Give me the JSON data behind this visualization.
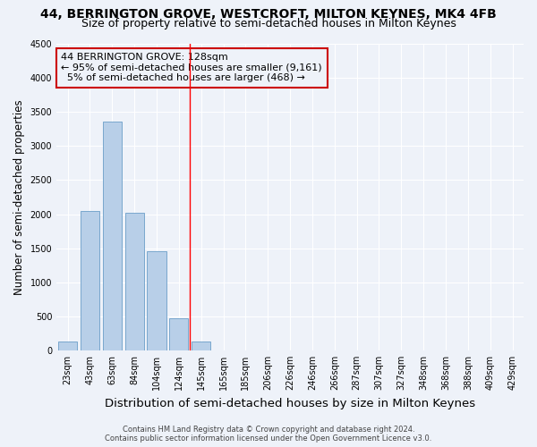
{
  "title": "44, BERRINGTON GROVE, WESTCROFT, MILTON KEYNES, MK4 4FB",
  "subtitle": "Size of property relative to semi-detached houses in Milton Keynes",
  "xlabel": "Distribution of semi-detached houses by size in Milton Keynes",
  "ylabel": "Number of semi-detached properties",
  "categories": [
    "23sqm",
    "43sqm",
    "63sqm",
    "84sqm",
    "104sqm",
    "124sqm",
    "145sqm",
    "165sqm",
    "185sqm",
    "206sqm",
    "226sqm",
    "246sqm",
    "266sqm",
    "287sqm",
    "307sqm",
    "327sqm",
    "348sqm",
    "368sqm",
    "388sqm",
    "409sqm",
    "429sqm"
  ],
  "values": [
    130,
    2040,
    3360,
    2020,
    1450,
    470,
    130,
    0,
    0,
    0,
    0,
    0,
    0,
    0,
    0,
    0,
    0,
    0,
    0,
    0,
    0
  ],
  "bar_color": "#b8cfe8",
  "bar_edge_color": "#6a9ec8",
  "property_label": "44 BERRINGTON GROVE: 128sqm",
  "pct_smaller": 95,
  "n_smaller": 9161,
  "pct_larger": 5,
  "n_larger": 468,
  "vline_index": 5.5,
  "annotation_box_color": "#cc0000",
  "ylim": [
    0,
    4500
  ],
  "yticks": [
    0,
    500,
    1000,
    1500,
    2000,
    2500,
    3000,
    3500,
    4000,
    4500
  ],
  "footer1": "Contains HM Land Registry data © Crown copyright and database right 2024.",
  "footer2": "Contains public sector information licensed under the Open Government Licence v3.0.",
  "background_color": "#eef2f9",
  "grid_color": "#ffffff",
  "title_fontsize": 10,
  "subtitle_fontsize": 9,
  "tick_fontsize": 7,
  "ylabel_fontsize": 8.5,
  "xlabel_fontsize": 9.5,
  "footer_fontsize": 6,
  "annot_fontsize": 8
}
